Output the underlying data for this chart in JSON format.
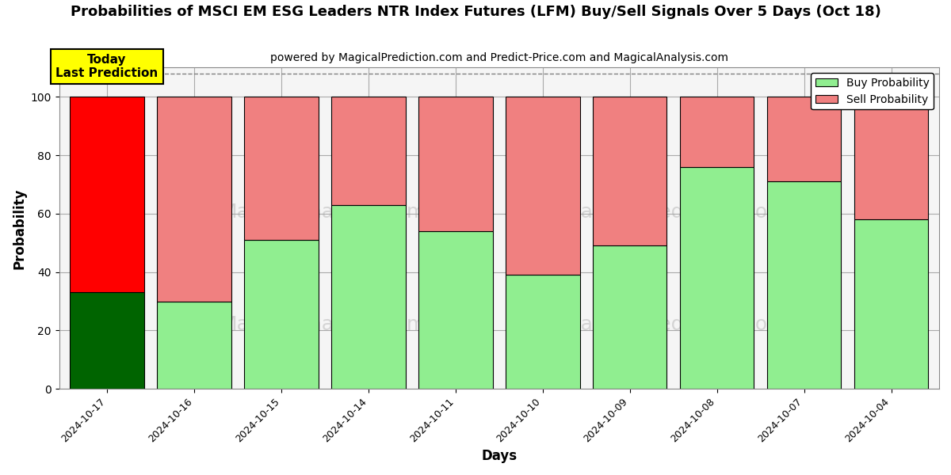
{
  "title": "Probabilities of MSCI EM ESG Leaders NTR Index Futures (LFM) Buy/Sell Signals Over 5 Days (Oct 18)",
  "subtitle": "powered by MagicalPrediction.com and Predict-Price.com and MagicalAnalysis.com",
  "xlabel": "Days",
  "ylabel": "Probability",
  "dates": [
    "2024-10-17",
    "2024-10-16",
    "2024-10-15",
    "2024-10-14",
    "2024-10-11",
    "2024-10-10",
    "2024-10-09",
    "2024-10-08",
    "2024-10-07",
    "2024-10-04"
  ],
  "buy_values": [
    33,
    30,
    51,
    63,
    54,
    39,
    49,
    76,
    71,
    58
  ],
  "sell_values": [
    67,
    70,
    49,
    37,
    46,
    61,
    51,
    24,
    29,
    42
  ],
  "today_bar_buy_color": "#006400",
  "today_bar_sell_color": "#ff0000",
  "other_bar_buy_color": "#90EE90",
  "other_bar_sell_color": "#F08080",
  "bar_edge_color": "#000000",
  "today_annotation_text": "Today\nLast Prediction",
  "today_annotation_bg": "#ffff00",
  "legend_buy_color": "#90EE90",
  "legend_sell_color": "#F08080",
  "ylim": [
    0,
    110
  ],
  "yticks": [
    0,
    20,
    40,
    60,
    80,
    100
  ],
  "dashed_line_y": 108,
  "watermark_lines": [
    "MagicalAnalysis.com        MagicalPrediction.com",
    "MagicalAnalysis.com        MagicalPrediction.com"
  ],
  "watermark_color": "#cccccc",
  "grid_color": "#aaaaaa",
  "plot_bg_color": "#f5f5f5",
  "background_color": "#ffffff",
  "bar_width": 0.85,
  "title_fontsize": 13,
  "subtitle_fontsize": 10,
  "tick_fontsize": 9,
  "axis_label_fontsize": 12
}
